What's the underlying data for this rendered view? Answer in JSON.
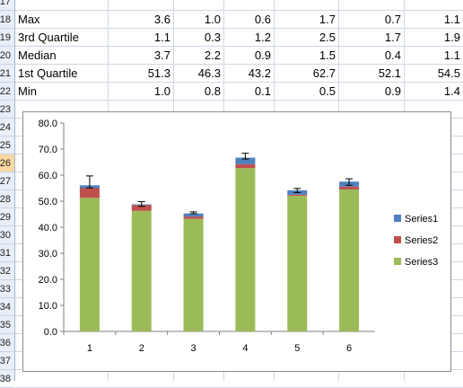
{
  "row_headers": [
    {
      "label": "17"
    },
    {
      "label": "18"
    },
    {
      "label": "19"
    },
    {
      "label": "20"
    },
    {
      "label": "21"
    },
    {
      "label": "22"
    },
    {
      "label": "23"
    },
    {
      "label": "24"
    },
    {
      "label": "25"
    },
    {
      "label": "26"
    },
    {
      "label": "27"
    },
    {
      "label": "28"
    },
    {
      "label": "29"
    },
    {
      "label": "30"
    },
    {
      "label": "31"
    },
    {
      "label": "32"
    },
    {
      "label": "33"
    },
    {
      "label": "34"
    },
    {
      "label": "35"
    },
    {
      "label": "36"
    },
    {
      "label": "37"
    },
    {
      "label": "38"
    }
  ],
  "selected_row": "26",
  "table_rows": [
    {
      "label": "Max",
      "values": [
        "3.6",
        "1.0",
        "0.6",
        "1.7",
        "0.7",
        "1.1"
      ]
    },
    {
      "label": "3rd Quartile",
      "values": [
        "1.1",
        "0.3",
        "1.2",
        "2.5",
        "1.7",
        "1.9"
      ]
    },
    {
      "label": "Median",
      "values": [
        "3.7",
        "2.2",
        "0.9",
        "1.5",
        "0.4",
        "1.1"
      ]
    },
    {
      "label": "1st Quartile",
      "values": [
        "51.3",
        "46.3",
        "43.2",
        "62.7",
        "52.1",
        "54.5"
      ]
    },
    {
      "label": "Min",
      "values": [
        "1.0",
        "0.8",
        "0.1",
        "0.5",
        "0.9",
        "1.4"
      ]
    }
  ],
  "chart_data": {
    "type": "bar",
    "stacked": true,
    "categories": [
      "1",
      "2",
      "3",
      "4",
      "5",
      "6"
    ],
    "series": [
      {
        "name": "Series3",
        "color": "#9bbb59",
        "values": [
          51.3,
          46.3,
          43.2,
          62.7,
          52.1,
          54.5
        ]
      },
      {
        "name": "Series2",
        "color": "#c0504d",
        "values": [
          3.7,
          2.2,
          0.9,
          1.5,
          0.4,
          1.1
        ]
      },
      {
        "name": "Series1",
        "color": "#4f81bd",
        "values": [
          1.1,
          0.3,
          1.2,
          2.5,
          1.7,
          1.9
        ]
      }
    ],
    "error_bars": {
      "plus": [
        3.6,
        1.0,
        0.6,
        1.7,
        0.7,
        1.1
      ],
      "minus": [
        1.0,
        0.8,
        0.1,
        0.5,
        0.9,
        1.4
      ]
    },
    "ylim": [
      0,
      80
    ],
    "yticks": [
      "0.0",
      "10.0",
      "20.0",
      "30.0",
      "40.0",
      "50.0",
      "60.0",
      "70.0",
      "80.0"
    ],
    "legend_order": [
      "Series1",
      "Series2",
      "Series3"
    ],
    "legend_position": "right",
    "grid": false
  }
}
